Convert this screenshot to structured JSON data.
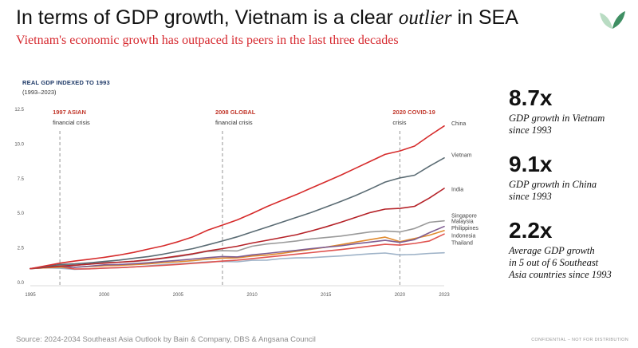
{
  "header": {
    "title_prefix": "In terms of GDP growth, Vietnam is a clear ",
    "title_emphasis": "outlier",
    "title_suffix": " in SEA",
    "subtitle": "Vietnam's economic growth has outpaced its peers in the last three decades"
  },
  "colors": {
    "title": "#111111",
    "subtitle": "#d6282e",
    "logo_light": "#b9dcc3",
    "logo_dark": "#3f8f63"
  },
  "chart_data": {
    "type": "line",
    "title": "REAL GDP INDEXED TO 1993",
    "subtitle": "(1993–2023)",
    "xlim": [
      1995,
      2023
    ],
    "ylim": [
      0,
      12.5
    ],
    "x_ticks": [
      1995,
      2000,
      2005,
      2010,
      2015,
      2020,
      2023
    ],
    "y_ticks": [
      0,
      2.5,
      5,
      7.5,
      10,
      12.5
    ],
    "y_tick_labels": [
      "0.0",
      "2.5",
      "5.0",
      "7.5",
      "10.0",
      "12.5"
    ],
    "grid": false,
    "annotations": [
      {
        "x": 1997,
        "title": "1997 ASIAN",
        "text": "financial crisis"
      },
      {
        "x": 2008,
        "title": "2008 GLOBAL",
        "text": "financial crisis"
      },
      {
        "x": 2020,
        "title": "2020 COVID-19",
        "text": "crisis"
      }
    ],
    "series": [
      {
        "name": "China",
        "color": "#d62b2b",
        "label_y": 11.45,
        "points": [
          [
            1995,
            1.0
          ],
          [
            1996,
            1.2
          ],
          [
            1997,
            1.4
          ],
          [
            1998,
            1.55
          ],
          [
            1999,
            1.68
          ],
          [
            2000,
            1.82
          ],
          [
            2001,
            1.98
          ],
          [
            2002,
            2.18
          ],
          [
            2003,
            2.42
          ],
          [
            2004,
            2.65
          ],
          [
            2005,
            2.95
          ],
          [
            2006,
            3.3
          ],
          [
            2007,
            3.78
          ],
          [
            2008,
            4.15
          ],
          [
            2009,
            4.52
          ],
          [
            2010,
            4.98
          ],
          [
            2011,
            5.48
          ],
          [
            2012,
            5.92
          ],
          [
            2013,
            6.35
          ],
          [
            2014,
            6.82
          ],
          [
            2015,
            7.28
          ],
          [
            2016,
            7.75
          ],
          [
            2017,
            8.25
          ],
          [
            2018,
            8.75
          ],
          [
            2019,
            9.25
          ],
          [
            2020,
            9.5
          ],
          [
            2021,
            9.85
          ],
          [
            2022,
            10.6
          ],
          [
            2023,
            11.3
          ]
        ]
      },
      {
        "name": "Vietnam",
        "color": "#5a6b73",
        "label_y": 9.2,
        "points": [
          [
            1995,
            1.0
          ],
          [
            1996,
            1.15
          ],
          [
            1997,
            1.3
          ],
          [
            1998,
            1.35
          ],
          [
            1999,
            1.42
          ],
          [
            2000,
            1.52
          ],
          [
            2001,
            1.62
          ],
          [
            2002,
            1.75
          ],
          [
            2003,
            1.88
          ],
          [
            2004,
            2.05
          ],
          [
            2005,
            2.25
          ],
          [
            2006,
            2.45
          ],
          [
            2007,
            2.72
          ],
          [
            2008,
            3.0
          ],
          [
            2009,
            3.3
          ],
          [
            2010,
            3.65
          ],
          [
            2011,
            4.0
          ],
          [
            2012,
            4.35
          ],
          [
            2013,
            4.7
          ],
          [
            2014,
            5.05
          ],
          [
            2015,
            5.45
          ],
          [
            2016,
            5.85
          ],
          [
            2017,
            6.28
          ],
          [
            2018,
            6.75
          ],
          [
            2019,
            7.25
          ],
          [
            2020,
            7.55
          ],
          [
            2021,
            7.75
          ],
          [
            2022,
            8.4
          ],
          [
            2023,
            9.0
          ]
        ]
      },
      {
        "name": "India",
        "color": "#b52228",
        "label_y": 6.7,
        "points": [
          [
            1995,
            1.0
          ],
          [
            1996,
            1.1
          ],
          [
            1997,
            1.18
          ],
          [
            1998,
            1.25
          ],
          [
            1999,
            1.33
          ],
          [
            2000,
            1.4
          ],
          [
            2001,
            1.47
          ],
          [
            2002,
            1.54
          ],
          [
            2003,
            1.65
          ],
          [
            2004,
            1.77
          ],
          [
            2005,
            1.92
          ],
          [
            2006,
            2.08
          ],
          [
            2007,
            2.28
          ],
          [
            2008,
            2.45
          ],
          [
            2009,
            2.62
          ],
          [
            2010,
            2.85
          ],
          [
            2011,
            3.05
          ],
          [
            2012,
            3.25
          ],
          [
            2013,
            3.45
          ],
          [
            2014,
            3.72
          ],
          [
            2015,
            4.02
          ],
          [
            2016,
            4.35
          ],
          [
            2017,
            4.7
          ],
          [
            2018,
            5.05
          ],
          [
            2019,
            5.3
          ],
          [
            2020,
            5.35
          ],
          [
            2021,
            5.5
          ],
          [
            2022,
            6.1
          ],
          [
            2023,
            6.8
          ]
        ]
      },
      {
        "name": "Singapore",
        "color": "#9a9a9a",
        "label_y": 4.8,
        "points": [
          [
            1995,
            1.0
          ],
          [
            1996,
            1.12
          ],
          [
            1997,
            1.22
          ],
          [
            1998,
            1.25
          ],
          [
            1999,
            1.33
          ],
          [
            2000,
            1.45
          ],
          [
            2001,
            1.47
          ],
          [
            2002,
            1.52
          ],
          [
            2003,
            1.6
          ],
          [
            2004,
            1.75
          ],
          [
            2005,
            1.88
          ],
          [
            2006,
            2.05
          ],
          [
            2007,
            2.25
          ],
          [
            2008,
            2.3
          ],
          [
            2009,
            2.28
          ],
          [
            2010,
            2.62
          ],
          [
            2011,
            2.78
          ],
          [
            2012,
            2.88
          ],
          [
            2013,
            3.0
          ],
          [
            2014,
            3.15
          ],
          [
            2015,
            3.25
          ],
          [
            2016,
            3.35
          ],
          [
            2017,
            3.5
          ],
          [
            2018,
            3.65
          ],
          [
            2019,
            3.72
          ],
          [
            2020,
            3.65
          ],
          [
            2021,
            3.9
          ],
          [
            2022,
            4.35
          ],
          [
            2023,
            4.45
          ]
        ]
      },
      {
        "name": "Malaysia",
        "color": "#7e5c91",
        "label_y": 4.4,
        "points": [
          [
            1995,
            1.0
          ],
          [
            1996,
            1.1
          ],
          [
            1997,
            1.2
          ],
          [
            1998,
            1.1
          ],
          [
            1999,
            1.18
          ],
          [
            2000,
            1.28
          ],
          [
            2001,
            1.3
          ],
          [
            2002,
            1.36
          ],
          [
            2003,
            1.43
          ],
          [
            2004,
            1.52
          ],
          [
            2005,
            1.6
          ],
          [
            2006,
            1.7
          ],
          [
            2007,
            1.8
          ],
          [
            2008,
            1.88
          ],
          [
            2009,
            1.85
          ],
          [
            2010,
            2.0
          ],
          [
            2011,
            2.1
          ],
          [
            2012,
            2.22
          ],
          [
            2013,
            2.32
          ],
          [
            2014,
            2.45
          ],
          [
            2015,
            2.55
          ],
          [
            2016,
            2.65
          ],
          [
            2017,
            2.8
          ],
          [
            2018,
            2.92
          ],
          [
            2019,
            3.05
          ],
          [
            2020,
            2.9
          ],
          [
            2021,
            3.1
          ],
          [
            2022,
            3.6
          ],
          [
            2023,
            4.05
          ]
        ]
      },
      {
        "name": "Philippines",
        "color": "#e08a2e",
        "label_y": 3.92,
        "points": [
          [
            1995,
            1.0
          ],
          [
            1996,
            1.06
          ],
          [
            1997,
            1.11
          ],
          [
            1998,
            1.11
          ],
          [
            1999,
            1.15
          ],
          [
            2000,
            1.21
          ],
          [
            2001,
            1.24
          ],
          [
            2002,
            1.29
          ],
          [
            2003,
            1.35
          ],
          [
            2004,
            1.44
          ],
          [
            2005,
            1.5
          ],
          [
            2006,
            1.58
          ],
          [
            2007,
            1.69
          ],
          [
            2008,
            1.76
          ],
          [
            2009,
            1.78
          ],
          [
            2010,
            1.91
          ],
          [
            2011,
            1.98
          ],
          [
            2012,
            2.11
          ],
          [
            2013,
            2.26
          ],
          [
            2014,
            2.4
          ],
          [
            2015,
            2.55
          ],
          [
            2016,
            2.73
          ],
          [
            2017,
            2.92
          ],
          [
            2018,
            3.1
          ],
          [
            2019,
            3.28
          ],
          [
            2020,
            2.95
          ],
          [
            2021,
            3.18
          ],
          [
            2022,
            3.42
          ],
          [
            2023,
            3.75
          ]
        ]
      },
      {
        "name": "Indonesia",
        "color": "#e0534f",
        "label_y": 3.38,
        "points": [
          [
            1995,
            1.0
          ],
          [
            1996,
            1.08
          ],
          [
            1997,
            1.13
          ],
          [
            1998,
            0.98
          ],
          [
            1999,
            0.99
          ],
          [
            2000,
            1.04
          ],
          [
            2001,
            1.08
          ],
          [
            2002,
            1.13
          ],
          [
            2003,
            1.18
          ],
          [
            2004,
            1.24
          ],
          [
            2005,
            1.31
          ],
          [
            2006,
            1.38
          ],
          [
            2007,
            1.46
          ],
          [
            2008,
            1.55
          ],
          [
            2009,
            1.62
          ],
          [
            2010,
            1.72
          ],
          [
            2011,
            1.83
          ],
          [
            2012,
            1.94
          ],
          [
            2013,
            2.05
          ],
          [
            2014,
            2.16
          ],
          [
            2015,
            2.27
          ],
          [
            2016,
            2.38
          ],
          [
            2017,
            2.5
          ],
          [
            2018,
            2.63
          ],
          [
            2019,
            2.76
          ],
          [
            2020,
            2.7
          ],
          [
            2021,
            2.82
          ],
          [
            2022,
            3.0
          ],
          [
            2023,
            3.5
          ]
        ]
      },
      {
        "name": "Thailand",
        "color": "#9fb3c8",
        "label_y": 2.85,
        "points": [
          [
            1995,
            1.0
          ],
          [
            1996,
            1.06
          ],
          [
            1997,
            1.03
          ],
          [
            1998,
            0.95
          ],
          [
            1999,
            0.99
          ],
          [
            2000,
            1.04
          ],
          [
            2001,
            1.07
          ],
          [
            2002,
            1.13
          ],
          [
            2003,
            1.21
          ],
          [
            2004,
            1.29
          ],
          [
            2005,
            1.35
          ],
          [
            2006,
            1.42
          ],
          [
            2007,
            1.49
          ],
          [
            2008,
            1.52
          ],
          [
            2009,
            1.5
          ],
          [
            2010,
            1.61
          ],
          [
            2011,
            1.62
          ],
          [
            2012,
            1.73
          ],
          [
            2013,
            1.78
          ],
          [
            2014,
            1.8
          ],
          [
            2015,
            1.86
          ],
          [
            2016,
            1.92
          ],
          [
            2017,
            2.0
          ],
          [
            2018,
            2.08
          ],
          [
            2019,
            2.13
          ],
          [
            2020,
            2.0
          ],
          [
            2021,
            2.03
          ],
          [
            2022,
            2.1
          ],
          [
            2023,
            2.15
          ]
        ]
      }
    ]
  },
  "stats": [
    {
      "big": "8.7x",
      "line1": "GDP growth in Vietnam",
      "line2": "since 1993",
      "line3": ""
    },
    {
      "big": "9.1x",
      "line1": "GDP growth in China",
      "line2": "since 1993",
      "line3": ""
    },
    {
      "big": "2.2x",
      "line1": "Average GDP growth",
      "line2": "in 5 out of 6 Southeast",
      "line3": "Asia countries since 1993"
    }
  ],
  "footer": {
    "source": "Source: 2024-2034 Southeast Asia Outlook by Bain & Company, DBS & Angsana Council",
    "confidential": "CONFIDENTIAL – NOT FOR DISTRIBUTION"
  }
}
